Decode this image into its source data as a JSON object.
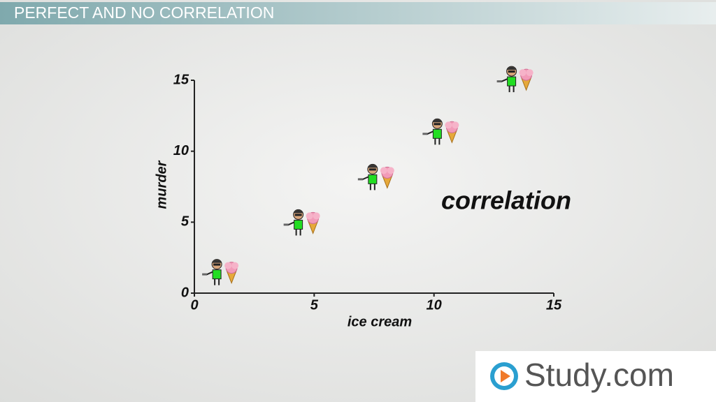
{
  "chart_data": {
    "type": "scatter",
    "title": "PERFECT AND NO CORRELATION",
    "x_label": "ice cream",
    "y_label": "murder",
    "annotation": "correlation",
    "x": [
      1.2,
      4.6,
      7.7,
      10.4,
      13.5
    ],
    "values": [
      1.2,
      4.7,
      7.9,
      11.1,
      14.8
    ],
    "xlim": [
      0,
      15
    ],
    "ylim": [
      0,
      15
    ],
    "xticks": [
      0,
      5,
      10,
      15
    ],
    "yticks": [
      0,
      5,
      10,
      15
    ],
    "color": "#22dd22"
  },
  "logo": "Study.com"
}
